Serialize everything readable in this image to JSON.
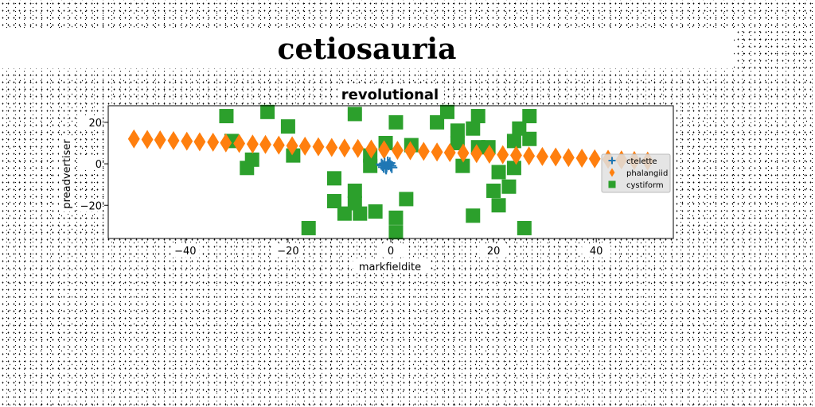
{
  "page": {
    "title": "cetiosauria"
  },
  "chart_data": {
    "type": "scatter",
    "title": "revolutional",
    "xlabel": "markfieldite",
    "ylabel": "preadvertiser",
    "xlim": [
      -55,
      55
    ],
    "ylim": [
      -36,
      28
    ],
    "xticks": [
      -40,
      -20,
      0,
      20,
      40
    ],
    "yticks": [
      -20,
      0,
      20
    ],
    "grid": false,
    "legend_position": "right",
    "series": [
      {
        "name": "ctelette",
        "marker": "plus",
        "color": "#1f77b4",
        "points": [
          [
            -1.6,
            -0.8
          ],
          [
            -1.2,
            0.2
          ],
          [
            -0.8,
            -1.4
          ],
          [
            -0.4,
            -0.4
          ],
          [
            0.0,
            -1.0
          ],
          [
            -1.0,
            -2.0
          ],
          [
            -0.2,
            0.4
          ],
          [
            -1.4,
            -1.6
          ],
          [
            -0.6,
            0.8
          ],
          [
            0.2,
            -1.8
          ],
          [
            -1.8,
            -0.2
          ],
          [
            -0.9,
            -2.4
          ]
        ]
      },
      {
        "name": "phalangiid",
        "marker": "thin_diamond",
        "color": "#ff7f0e",
        "points": [
          [
            -50,
            12
          ],
          [
            -47.4,
            11.7
          ],
          [
            -44.9,
            11.5
          ],
          [
            -42.3,
            11.2
          ],
          [
            -39.7,
            10.9
          ],
          [
            -37.2,
            10.6
          ],
          [
            -34.6,
            10.4
          ],
          [
            -32.1,
            10.1
          ],
          [
            -29.5,
            9.8
          ],
          [
            -26.9,
            9.5
          ],
          [
            -24.4,
            9.3
          ],
          [
            -21.8,
            9.0
          ],
          [
            -19.2,
            8.7
          ],
          [
            -16.7,
            8.5
          ],
          [
            -14.1,
            8.2
          ],
          [
            -11.5,
            7.9
          ],
          [
            -9.0,
            7.6
          ],
          [
            -6.4,
            7.4
          ],
          [
            -3.8,
            7.1
          ],
          [
            -1.3,
            6.8
          ],
          [
            1.3,
            6.5
          ],
          [
            3.8,
            6.3
          ],
          [
            6.4,
            6.0
          ],
          [
            9.0,
            5.7
          ],
          [
            11.5,
            5.4
          ],
          [
            14.1,
            5.2
          ],
          [
            16.7,
            4.9
          ],
          [
            19.2,
            4.6
          ],
          [
            21.8,
            4.4
          ],
          [
            24.4,
            4.1
          ],
          [
            26.9,
            3.8
          ],
          [
            29.5,
            3.5
          ],
          [
            32.1,
            3.3
          ],
          [
            34.6,
            3.0
          ],
          [
            37.2,
            2.7
          ],
          [
            39.7,
            2.4
          ],
          [
            42.3,
            2.2
          ],
          [
            44.9,
            1.9
          ],
          [
            47.4,
            1.6
          ],
          [
            50,
            1.3
          ]
        ]
      },
      {
        "name": "cystiform",
        "marker": "square",
        "color": "#2ca02c",
        "points": [
          [
            -32,
            23
          ],
          [
            -24,
            25
          ],
          [
            -20,
            18
          ],
          [
            -7,
            24
          ],
          [
            1,
            20
          ],
          [
            9,
            20
          ],
          [
            11,
            25
          ],
          [
            13,
            16
          ],
          [
            16,
            17
          ],
          [
            17,
            23
          ],
          [
            25,
            17
          ],
          [
            27,
            23
          ],
          [
            -31,
            11
          ],
          [
            -28,
            -2
          ],
          [
            -27,
            2
          ],
          [
            -19,
            4
          ],
          [
            -4,
            4
          ],
          [
            -4,
            -1
          ],
          [
            -1,
            10
          ],
          [
            4,
            9
          ],
          [
            13,
            10
          ],
          [
            17,
            8
          ],
          [
            19,
            8
          ],
          [
            24,
            11
          ],
          [
            27,
            12
          ],
          [
            -11,
            -7
          ],
          [
            -11,
            -18
          ],
          [
            -7,
            -13
          ],
          [
            -7,
            -19
          ],
          [
            -9,
            -24
          ],
          [
            -6,
            -24
          ],
          [
            -3,
            -23
          ],
          [
            1,
            -26
          ],
          [
            1,
            -33
          ],
          [
            3,
            -17
          ],
          [
            -16,
            -31
          ],
          [
            16,
            -25
          ],
          [
            20,
            -13
          ],
          [
            21,
            -20
          ],
          [
            23,
            -11
          ],
          [
            24,
            -2
          ],
          [
            21,
            -4
          ],
          [
            14,
            -1
          ],
          [
            26,
            -31
          ]
        ]
      }
    ]
  }
}
